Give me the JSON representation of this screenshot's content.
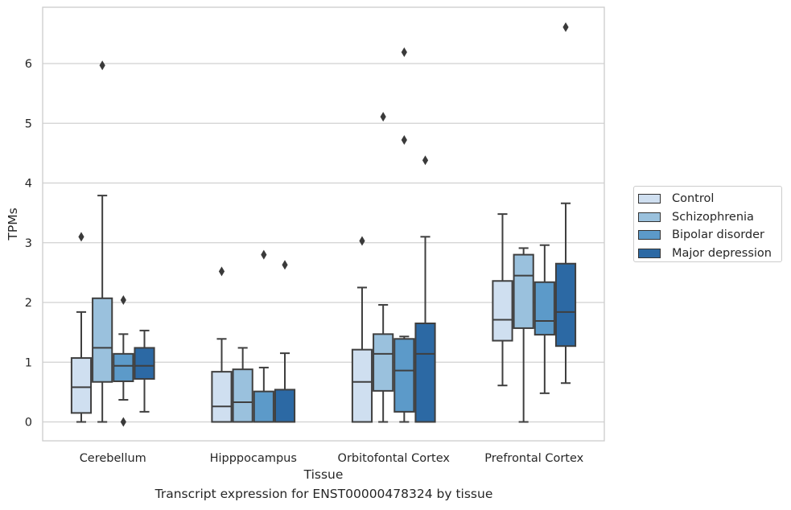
{
  "chart_data": {
    "type": "box",
    "xlabel": "Tissue",
    "ylabel": "TPMs",
    "caption": "Transcript expression for ENST00000478324 by tissue",
    "ylim": [
      -0.32,
      6.95
    ],
    "yticks": [
      0,
      1,
      2,
      3,
      4,
      5,
      6
    ],
    "grid": "horizontal",
    "legend_position": "right",
    "categories": [
      "Cerebellum",
      "Hipppocampus",
      "Orbitofontal Cortex",
      "Prefrontal Cortex"
    ],
    "series": [
      {
        "name": "Control",
        "color": "#cfdff0",
        "boxes": [
          {
            "whisker_low": 0.0,
            "q1": 0.15,
            "median": 0.58,
            "q3": 1.07,
            "whisker_high": 1.84,
            "outliers": [
              3.1
            ]
          },
          {
            "whisker_low": 0.0,
            "q1": 0.0,
            "median": 0.26,
            "q3": 0.84,
            "whisker_high": 1.39,
            "outliers": [
              2.52
            ]
          },
          {
            "whisker_low": 0.0,
            "q1": 0.0,
            "median": 0.67,
            "q3": 1.21,
            "whisker_high": 2.25,
            "outliers": [
              3.03
            ]
          },
          {
            "whisker_low": 0.61,
            "q1": 1.36,
            "median": 1.71,
            "q3": 2.36,
            "whisker_high": 3.48,
            "outliers": []
          }
        ]
      },
      {
        "name": "Schizophrenia",
        "color": "#9ac1dd",
        "boxes": [
          {
            "whisker_low": 0.0,
            "q1": 0.67,
            "median": 1.24,
            "q3": 2.07,
            "whisker_high": 3.79,
            "outliers": [
              5.97
            ]
          },
          {
            "whisker_low": 0.0,
            "q1": 0.0,
            "median": 0.33,
            "q3": 0.88,
            "whisker_high": 1.24,
            "outliers": []
          },
          {
            "whisker_low": 0.0,
            "q1": 0.52,
            "median": 1.14,
            "q3": 1.47,
            "whisker_high": 1.96,
            "outliers": [
              5.11
            ]
          },
          {
            "whisker_low": 0.0,
            "q1": 1.57,
            "median": 2.45,
            "q3": 2.8,
            "whisker_high": 2.91,
            "outliers": []
          }
        ]
      },
      {
        "name": "Bipolar disorder",
        "color": "#5c9ac9",
        "boxes": [
          {
            "whisker_low": 0.37,
            "q1": 0.68,
            "median": 0.94,
            "q3": 1.14,
            "whisker_high": 1.47,
            "outliers": [
              2.04,
              0.0
            ]
          },
          {
            "whisker_low": 0.0,
            "q1": 0.0,
            "median": 0.0,
            "q3": 0.51,
            "whisker_high": 0.91,
            "outliers": [
              2.8
            ]
          },
          {
            "whisker_low": 0.0,
            "q1": 0.17,
            "median": 0.86,
            "q3": 1.39,
            "whisker_high": 1.43,
            "outliers": [
              6.19,
              4.72
            ]
          },
          {
            "whisker_low": 0.48,
            "q1": 1.46,
            "median": 1.69,
            "q3": 2.34,
            "whisker_high": 2.96,
            "outliers": []
          }
        ]
      },
      {
        "name": "Major depression",
        "color": "#2c69a4",
        "boxes": [
          {
            "whisker_low": 0.17,
            "q1": 0.72,
            "median": 0.94,
            "q3": 1.24,
            "whisker_high": 1.53,
            "outliers": []
          },
          {
            "whisker_low": 0.0,
            "q1": 0.0,
            "median": 0.0,
            "q3": 0.54,
            "whisker_high": 1.15,
            "outliers": [
              2.63
            ]
          },
          {
            "whisker_low": 0.0,
            "q1": 0.0,
            "median": 1.14,
            "q3": 1.65,
            "whisker_high": 3.1,
            "outliers": [
              4.38
            ]
          },
          {
            "whisker_low": 0.65,
            "q1": 1.27,
            "median": 1.84,
            "q3": 2.65,
            "whisker_high": 3.66,
            "outliers": [
              6.61
            ]
          }
        ]
      }
    ]
  }
}
